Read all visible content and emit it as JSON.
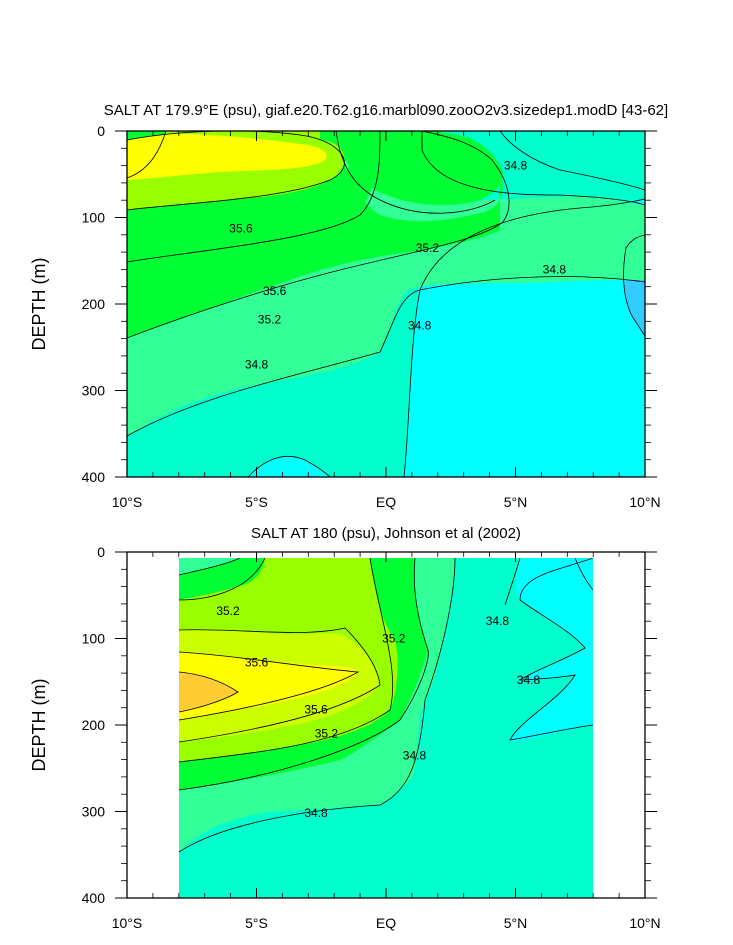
{
  "chart_data": [
    {
      "type": "contour",
      "title": "SALT AT 179.9°E (psu), giaf.e20.T62.g16.marbl090.zooO2v3.sizedep1.modD [43-62]",
      "ylabel": "DEPTH (m)",
      "xlabel": "",
      "x_ticks": [
        "10°S",
        "5°S",
        "EQ",
        "5°N",
        "10°N"
      ],
      "y_ticks": [
        "0",
        "100",
        "200",
        "300",
        "400"
      ],
      "xlim": [
        -10,
        10
      ],
      "ylim": [
        400,
        0
      ],
      "levels": [
        34.6,
        34.8,
        35.0,
        35.2,
        35.4,
        35.6
      ],
      "contour_labels": [
        {
          "text": "35.6",
          "x": -5.6,
          "y": 113
        },
        {
          "text": "35.6",
          "x": -4.3,
          "y": 185
        },
        {
          "text": "35.2",
          "x": -4.5,
          "y": 218
        },
        {
          "text": "34.8",
          "x": -5.0,
          "y": 270
        },
        {
          "text": "35.2",
          "x": 1.6,
          "y": 135
        },
        {
          "text": "34.8",
          "x": 1.3,
          "y": 225
        },
        {
          "text": "34.8",
          "x": 5.0,
          "y": 40
        },
        {
          "text": "34.8",
          "x": 6.5,
          "y": 160
        }
      ]
    },
    {
      "type": "contour",
      "title": "SALT AT 180 (psu), Johnson et al (2002)",
      "ylabel": "DEPTH (m)",
      "xlabel": "",
      "x_ticks": [
        "10°S",
        "5°S",
        "EQ",
        "5°N",
        "10°N"
      ],
      "y_ticks": [
        "0",
        "100",
        "200",
        "300",
        "400"
      ],
      "xlim": [
        -10,
        10
      ],
      "ylim": [
        400,
        0
      ],
      "data_xrange": [
        -8,
        8
      ],
      "levels": [
        34.6,
        34.8,
        35.0,
        35.2,
        35.4,
        35.6,
        35.8
      ],
      "contour_labels": [
        {
          "text": "35.2",
          "x": -6.1,
          "y": 68
        },
        {
          "text": "35.6",
          "x": -5.0,
          "y": 128
        },
        {
          "text": "35.6",
          "x": -2.7,
          "y": 182
        },
        {
          "text": "35.2",
          "x": -2.3,
          "y": 210
        },
        {
          "text": "34.8",
          "x": -2.7,
          "y": 302
        },
        {
          "text": "35.2",
          "x": 0.3,
          "y": 100
        },
        {
          "text": "34.8",
          "x": 1.1,
          "y": 235
        },
        {
          "text": "34.8",
          "x": 4.3,
          "y": 80
        },
        {
          "text": "34.8",
          "x": 5.5,
          "y": 148
        }
      ]
    }
  ],
  "colors": {
    "c34_6": "#00ffff",
    "c34_8": "#00ffcc",
    "c35_0": "#33ff99",
    "c35_2": "#00ff33",
    "c35_4": "#99ff00",
    "c35_6": "#ffff00",
    "c35_8": "#ffcc33",
    "c34_4": "#33ccff",
    "line": "#000000"
  }
}
